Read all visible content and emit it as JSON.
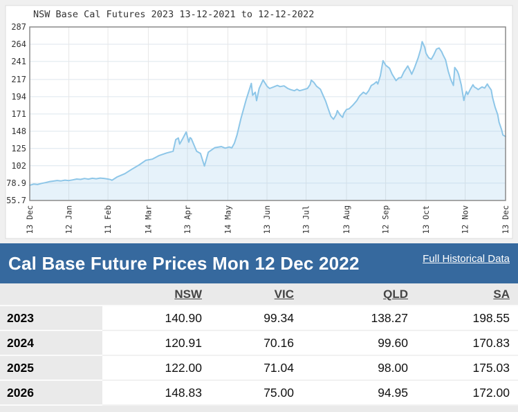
{
  "page": {
    "background": "#f0f0f0"
  },
  "chart": {
    "colors": {
      "line": "#8dc6e8",
      "fill": "#8dc6e8",
      "fill_opacity": 0.22,
      "grid_h": "#dce6ee",
      "grid_v": "#e7e7e7",
      "border": "#8a8a8a",
      "label": "#333333",
      "panel": "#ffffff"
    }
  },
  "chart_data": {
    "type": "area",
    "title": "NSW Base Cal Futures 2023 13-12-2021 to 12-12-2022",
    "series_name": "NSW Base Cal Futures 2023 ($/MWh)",
    "x_unit": "days since 13 Dec 2021",
    "xlim": [
      0,
      365
    ],
    "ylim": [
      55.7,
      287
    ],
    "y_ticks": [
      287,
      264,
      241,
      217,
      194,
      171,
      148,
      125,
      102,
      78.9,
      55.7
    ],
    "x_ticks": [
      {
        "day": 0,
        "label": "13 Dec"
      },
      {
        "day": 30,
        "label": "12 Jan"
      },
      {
        "day": 60,
        "label": "11 Feb"
      },
      {
        "day": 91,
        "label": "14 Mar"
      },
      {
        "day": 121,
        "label": "13 Apr"
      },
      {
        "day": 152,
        "label": "14 May"
      },
      {
        "day": 182,
        "label": "13 Jun"
      },
      {
        "day": 212,
        "label": "13 Jul"
      },
      {
        "day": 243,
        "label": "13 Aug"
      },
      {
        "day": 273,
        "label": "12 Sep"
      },
      {
        "day": 304,
        "label": "13 Oct"
      },
      {
        "day": 334,
        "label": "12 Nov"
      },
      {
        "day": 365,
        "label": "13 Dec"
      }
    ],
    "grid": true,
    "legend": false,
    "series": [
      {
        "name": "NSW Base Cal 2023",
        "points": [
          [
            0,
            76
          ],
          [
            3,
            77.5
          ],
          [
            6,
            77
          ],
          [
            9,
            78.5
          ],
          [
            12,
            79.5
          ],
          [
            15,
            80.8
          ],
          [
            18,
            81.5
          ],
          [
            21,
            82.3
          ],
          [
            24,
            81.8
          ],
          [
            27,
            82.8
          ],
          [
            30,
            82.2
          ],
          [
            33,
            83.2
          ],
          [
            36,
            84.3
          ],
          [
            39,
            83.8
          ],
          [
            42,
            85
          ],
          [
            45,
            84.2
          ],
          [
            48,
            85.3
          ],
          [
            51,
            84.6
          ],
          [
            54,
            85.6
          ],
          [
            57,
            85.1
          ],
          [
            60,
            84.3
          ],
          [
            62,
            83.5
          ],
          [
            63,
            82.6
          ],
          [
            67,
            87
          ],
          [
            73,
            91.5
          ],
          [
            78,
            97
          ],
          [
            84,
            103.2
          ],
          [
            89,
            109.2
          ],
          [
            94,
            110.8
          ],
          [
            99,
            115.4
          ],
          [
            105,
            119
          ],
          [
            110,
            121.3
          ],
          [
            112,
            136.8
          ],
          [
            114,
            139
          ],
          [
            115,
            130.9
          ],
          [
            117,
            137
          ],
          [
            120,
            146.9
          ],
          [
            122,
            133.5
          ],
          [
            123,
            139.5
          ],
          [
            124,
            138
          ],
          [
            128,
            121.3
          ],
          [
            131,
            118.4
          ],
          [
            134,
            101.6
          ],
          [
            137,
            120
          ],
          [
            142,
            126.1
          ],
          [
            147,
            127.6
          ],
          [
            150,
            125.5
          ],
          [
            153,
            127
          ],
          [
            155,
            125.8
          ],
          [
            157,
            132
          ],
          [
            159,
            143
          ],
          [
            162,
            165
          ],
          [
            166,
            190
          ],
          [
            170,
            211.7
          ],
          [
            171,
            196
          ],
          [
            173,
            200
          ],
          [
            174,
            188.8
          ],
          [
            176,
            205
          ],
          [
            179,
            216.3
          ],
          [
            182,
            208
          ],
          [
            184,
            205
          ],
          [
            187,
            207
          ],
          [
            190,
            209
          ],
          [
            192,
            207.5
          ],
          [
            195,
            208.5
          ],
          [
            198,
            205
          ],
          [
            200,
            203.5
          ],
          [
            203,
            202
          ],
          [
            205,
            204
          ],
          [
            207,
            202
          ],
          [
            209,
            203
          ],
          [
            211,
            204
          ],
          [
            213,
            205
          ],
          [
            215,
            210
          ],
          [
            216,
            216
          ],
          [
            218,
            213
          ],
          [
            220,
            208
          ],
          [
            223,
            204
          ],
          [
            225,
            196
          ],
          [
            227,
            188
          ],
          [
            229,
            178
          ],
          [
            231,
            168
          ],
          [
            233,
            164
          ],
          [
            235,
            170
          ],
          [
            236,
            175.5
          ],
          [
            238,
            170
          ],
          [
            240,
            166.5
          ],
          [
            241,
            172
          ],
          [
            243,
            177
          ],
          [
            245,
            178
          ],
          [
            248,
            183
          ],
          [
            251,
            189
          ],
          [
            253,
            195
          ],
          [
            256,
            200
          ],
          [
            258,
            197.5
          ],
          [
            260,
            202
          ],
          [
            262,
            209
          ],
          [
            264,
            211
          ],
          [
            266,
            214
          ],
          [
            267,
            211
          ],
          [
            269,
            222
          ],
          [
            271,
            242
          ],
          [
            273,
            236
          ],
          [
            276,
            232
          ],
          [
            278,
            224
          ],
          [
            281,
            215.5
          ],
          [
            283,
            219
          ],
          [
            285,
            219.5
          ],
          [
            287,
            227
          ],
          [
            290,
            235
          ],
          [
            292,
            228
          ],
          [
            293,
            224
          ],
          [
            295,
            232
          ],
          [
            298,
            246
          ],
          [
            300,
            258
          ],
          [
            301,
            267.5
          ],
          [
            303,
            260
          ],
          [
            304,
            252
          ],
          [
            306,
            246
          ],
          [
            308,
            244
          ],
          [
            310,
            250
          ],
          [
            312,
            257.5
          ],
          [
            314,
            259
          ],
          [
            316,
            254
          ],
          [
            317,
            250
          ],
          [
            319,
            243
          ],
          [
            321,
            228
          ],
          [
            323,
            217
          ],
          [
            325,
            209
          ],
          [
            326,
            233
          ],
          [
            328,
            228
          ],
          [
            329,
            224
          ],
          [
            331,
            210
          ],
          [
            333,
            189
          ],
          [
            334,
            196
          ],
          [
            335,
            201
          ],
          [
            336,
            197
          ],
          [
            338,
            204
          ],
          [
            340,
            210
          ],
          [
            341,
            207
          ],
          [
            343,
            205
          ],
          [
            344,
            203.5
          ],
          [
            346,
            206
          ],
          [
            347,
            207
          ],
          [
            349,
            205.5
          ],
          [
            351,
            211
          ],
          [
            352,
            208
          ],
          [
            354,
            203
          ],
          [
            355,
            193
          ],
          [
            357,
            180
          ],
          [
            359,
            170
          ],
          [
            360,
            160
          ],
          [
            362,
            150
          ],
          [
            363,
            143
          ],
          [
            365,
            140.9
          ]
        ]
      }
    ]
  },
  "table": {
    "title": "Cal Base Future Prices Mon 12 Dec 2022",
    "link_label": "Full Historical Data",
    "header_bg": "#36699E",
    "columns": [
      "NSW",
      "VIC",
      "QLD",
      "SA"
    ],
    "rows": [
      {
        "year": "2023",
        "values": [
          "140.90",
          "99.34",
          "138.27",
          "198.55"
        ]
      },
      {
        "year": "2024",
        "values": [
          "120.91",
          "70.16",
          "99.60",
          "170.83"
        ]
      },
      {
        "year": "2025",
        "values": [
          "122.00",
          "71.04",
          "98.00",
          "175.03"
        ]
      },
      {
        "year": "2026",
        "values": [
          "148.83",
          "75.00",
          "94.95",
          "172.00"
        ]
      }
    ]
  }
}
